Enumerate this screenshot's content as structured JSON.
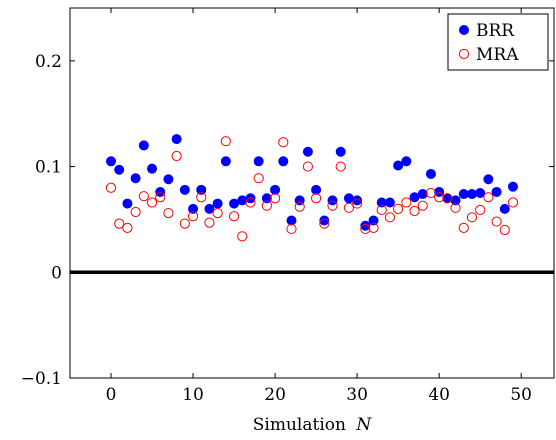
{
  "chart_data": {
    "type": "scatter",
    "xlabel": "Simulation N",
    "xlabel_main": "Simulation",
    "xlabel_var": "N",
    "xlim": [
      -5,
      54
    ],
    "ylim": [
      -0.1,
      0.25
    ],
    "x_ticks": [
      0,
      10,
      20,
      30,
      40,
      50
    ],
    "x_tick_labels": [
      "0",
      "10",
      "20",
      "30",
      "40",
      "50"
    ],
    "y_ticks": [
      -0.1,
      0,
      0.1,
      0.2
    ],
    "y_tick_labels": [
      "−0.1",
      "0",
      "0.1",
      "0.2"
    ],
    "zero_line": 0,
    "grid": false,
    "legend_position": "top-right",
    "series": [
      {
        "name": "BRR",
        "marker": "filled-circle",
        "color": "#0000ff",
        "x": [
          0,
          1,
          2,
          3,
          4,
          5,
          6,
          7,
          8,
          9,
          10,
          11,
          12,
          13,
          14,
          15,
          16,
          17,
          18,
          19,
          20,
          21,
          22,
          23,
          24,
          25,
          26,
          27,
          28,
          29,
          30,
          31,
          32,
          33,
          34,
          35,
          36,
          37,
          38,
          39,
          40,
          41,
          42,
          43,
          44,
          45,
          46,
          47,
          48,
          49
        ],
        "y": [
          0.105,
          0.097,
          0.065,
          0.089,
          0.12,
          0.098,
          0.076,
          0.088,
          0.126,
          0.078,
          0.06,
          0.078,
          0.06,
          0.065,
          0.105,
          0.065,
          0.068,
          0.07,
          0.105,
          0.07,
          0.078,
          0.105,
          0.049,
          0.068,
          0.114,
          0.078,
          0.049,
          0.068,
          0.114,
          0.07,
          0.068,
          0.044,
          0.049,
          0.066,
          0.066,
          0.101,
          0.105,
          0.071,
          0.074,
          0.093,
          0.076,
          0.07,
          0.068,
          0.074,
          0.074,
          0.075,
          0.088,
          0.076,
          0.06,
          0.081
        ]
      },
      {
        "name": "MRA",
        "marker": "open-circle",
        "color": "#ff0000",
        "x": [
          0,
          1,
          2,
          3,
          4,
          5,
          6,
          7,
          8,
          9,
          10,
          11,
          12,
          13,
          14,
          15,
          16,
          17,
          18,
          19,
          20,
          21,
          22,
          23,
          24,
          25,
          26,
          27,
          28,
          29,
          30,
          31,
          32,
          33,
          34,
          35,
          36,
          37,
          38,
          39,
          40,
          41,
          42,
          43,
          44,
          45,
          46,
          47,
          48,
          49
        ],
        "y": [
          0.08,
          0.046,
          0.042,
          0.057,
          0.072,
          0.066,
          0.071,
          0.056,
          0.11,
          0.046,
          0.053,
          0.071,
          0.047,
          0.056,
          0.124,
          0.053,
          0.034,
          0.066,
          0.089,
          0.063,
          0.07,
          0.123,
          0.041,
          0.062,
          0.1,
          0.07,
          0.046,
          0.063,
          0.1,
          0.061,
          0.065,
          0.041,
          0.042,
          0.059,
          0.052,
          0.06,
          0.066,
          0.058,
          0.063,
          0.075,
          0.071,
          0.07,
          0.061,
          0.042,
          0.052,
          0.059,
          0.071,
          0.048,
          0.04,
          0.066
        ]
      }
    ]
  }
}
